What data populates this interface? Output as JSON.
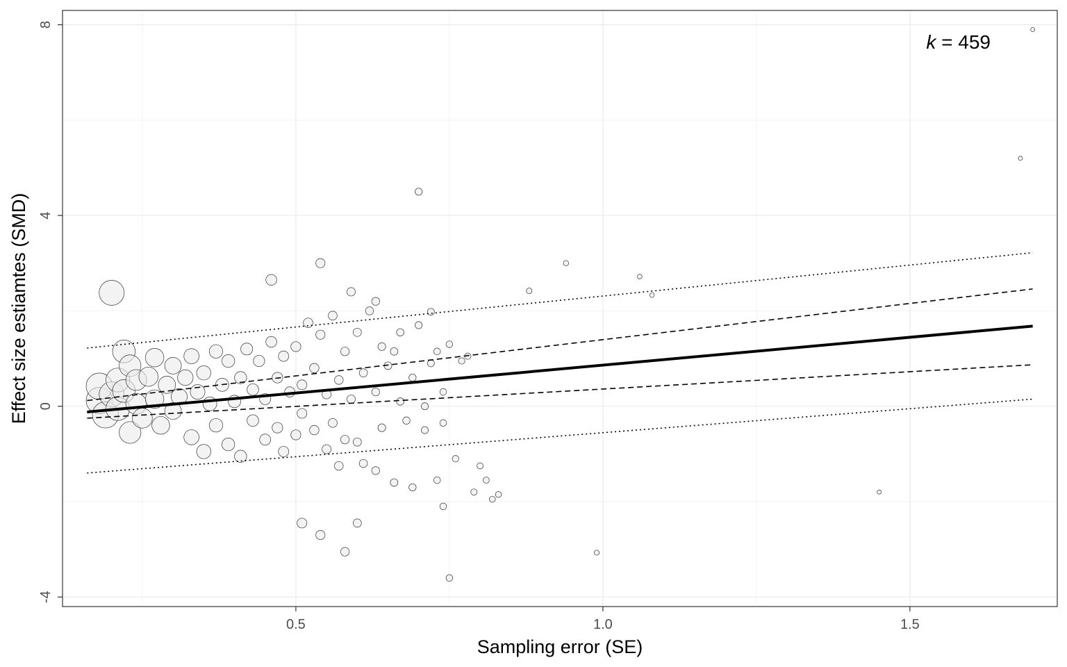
{
  "chart_data": {
    "type": "scatter",
    "xlabel": "Sampling error (SE)",
    "ylabel": "Effect size estiamtes (SMD)",
    "xlim": [
      0.12,
      1.74
    ],
    "ylim": [
      -4.2,
      8.3
    ],
    "x_ticks": [
      0.5,
      1.0,
      1.5
    ],
    "x_tick_labels": [
      "0.5",
      "1.0",
      "1.5"
    ],
    "x_minor_ticks": [
      0.25,
      0.75,
      1.25,
      1.75
    ],
    "y_ticks": [
      -4,
      0,
      4,
      8
    ],
    "y_tick_labels": [
      "-4",
      "0",
      "4",
      "8"
    ],
    "y_minor_ticks": [
      -2,
      2,
      6
    ],
    "grid": true,
    "annotation": {
      "italic": "k",
      "rest": " = 459"
    },
    "point_style": {
      "fill": "#ebebeb",
      "fill_opacity": 0.6,
      "stroke": "#333333"
    },
    "fit": {
      "x": [
        0.16,
        1.7
      ],
      "estimate": [
        -0.12,
        1.68
      ],
      "ci_lower": [
        -0.25,
        0.87
      ],
      "ci_upper": [
        0.12,
        2.46
      ],
      "pi_lower": [
        -1.4,
        0.15
      ],
      "pi_upper": [
        1.22,
        3.22
      ]
    },
    "notable_points": [
      {
        "se": 1.7,
        "smd": 7.9
      },
      {
        "se": 1.68,
        "smd": 5.2
      },
      {
        "se": 1.45,
        "smd": -1.8
      },
      {
        "se": 0.99,
        "smd": -3.07
      },
      {
        "se": 0.94,
        "smd": 3.0
      },
      {
        "se": 1.06,
        "smd": 2.72
      },
      {
        "se": 1.08,
        "smd": 2.33
      },
      {
        "se": 0.88,
        "smd": 2.42
      },
      {
        "se": 0.7,
        "smd": 4.5
      },
      {
        "se": 0.2,
        "smd": 2.38
      },
      {
        "se": 0.75,
        "smd": -3.6
      },
      {
        "se": 0.58,
        "smd": -3.05
      },
      {
        "se": 0.54,
        "smd": -2.7
      },
      {
        "se": 0.51,
        "smd": -2.45
      },
      {
        "se": 0.6,
        "smd": -2.45
      },
      {
        "se": 0.54,
        "smd": 3.0
      },
      {
        "se": 0.46,
        "smd": 2.65
      },
      {
        "se": 0.74,
        "smd": -2.1
      },
      {
        "se": 0.72,
        "smd": 1.98
      },
      {
        "se": 0.63,
        "smd": 2.2
      }
    ],
    "cloud_points": [
      [
        0.18,
        0.12
      ],
      [
        0.18,
        0.42
      ],
      [
        0.19,
        -0.18
      ],
      [
        0.2,
        0.25
      ],
      [
        0.21,
        0.55
      ],
      [
        0.21,
        -0.05
      ],
      [
        0.22,
        0.32
      ],
      [
        0.22,
        1.15
      ],
      [
        0.23,
        -0.55
      ],
      [
        0.23,
        0.85
      ],
      [
        0.24,
        0.05
      ],
      [
        0.24,
        0.55
      ],
      [
        0.25,
        -0.25
      ],
      [
        0.26,
        0.62
      ],
      [
        0.27,
        0.15
      ],
      [
        0.27,
        1.02
      ],
      [
        0.28,
        -0.4
      ],
      [
        0.29,
        0.45
      ],
      [
        0.3,
        0.85
      ],
      [
        0.3,
        -0.1
      ],
      [
        0.31,
        0.2
      ],
      [
        0.32,
        0.6
      ],
      [
        0.33,
        -0.65
      ],
      [
        0.33,
        1.05
      ],
      [
        0.34,
        0.3
      ],
      [
        0.35,
        -0.95
      ],
      [
        0.35,
        0.7
      ],
      [
        0.36,
        0.05
      ],
      [
        0.37,
        1.15
      ],
      [
        0.37,
        -0.4
      ],
      [
        0.38,
        0.45
      ],
      [
        0.39,
        -0.8
      ],
      [
        0.39,
        0.95
      ],
      [
        0.4,
        0.1
      ],
      [
        0.41,
        -1.05
      ],
      [
        0.41,
        0.6
      ],
      [
        0.42,
        1.2
      ],
      [
        0.43,
        -0.3
      ],
      [
        0.43,
        0.35
      ],
      [
        0.44,
        0.95
      ],
      [
        0.45,
        -0.7
      ],
      [
        0.45,
        0.15
      ],
      [
        0.46,
        1.35
      ],
      [
        0.47,
        -0.45
      ],
      [
        0.47,
        0.6
      ],
      [
        0.48,
        -0.95
      ],
      [
        0.48,
        1.05
      ],
      [
        0.49,
        0.3
      ],
      [
        0.5,
        -0.6
      ],
      [
        0.5,
        1.25
      ],
      [
        0.51,
        0.45
      ],
      [
        0.51,
        -0.15
      ],
      [
        0.52,
        1.75
      ],
      [
        0.53,
        -0.5
      ],
      [
        0.53,
        0.8
      ],
      [
        0.54,
        1.5
      ],
      [
        0.55,
        -0.9
      ],
      [
        0.55,
        0.25
      ],
      [
        0.56,
        1.9
      ],
      [
        0.56,
        -0.35
      ],
      [
        0.57,
        0.55
      ],
      [
        0.57,
        -1.25
      ],
      [
        0.58,
        1.15
      ],
      [
        0.58,
        -0.7
      ],
      [
        0.59,
        2.4
      ],
      [
        0.59,
        0.15
      ],
      [
        0.6,
        -0.75
      ],
      [
        0.6,
        1.55
      ],
      [
        0.61,
        0.7
      ],
      [
        0.61,
        -1.2
      ],
      [
        0.62,
        2.0
      ],
      [
        0.63,
        0.3
      ],
      [
        0.63,
        -1.35
      ],
      [
        0.64,
        1.25
      ],
      [
        0.64,
        -0.45
      ],
      [
        0.65,
        0.85
      ],
      [
        0.66,
        -1.6
      ],
      [
        0.67,
        0.1
      ],
      [
        0.67,
        1.55
      ],
      [
        0.68,
        -0.3
      ],
      [
        0.69,
        0.6
      ],
      [
        0.69,
        -1.7
      ],
      [
        0.7,
        1.7
      ],
      [
        0.71,
        -0.5
      ],
      [
        0.71,
        0.0
      ],
      [
        0.72,
        0.9
      ],
      [
        0.73,
        -1.55
      ],
      [
        0.73,
        1.15
      ],
      [
        0.74,
        -0.35
      ],
      [
        0.74,
        0.3
      ],
      [
        0.75,
        1.3
      ],
      [
        0.76,
        -1.1
      ],
      [
        0.77,
        0.95
      ],
      [
        0.78,
        1.05
      ],
      [
        0.79,
        -1.8
      ],
      [
        0.8,
        -1.25
      ],
      [
        0.81,
        -1.55
      ],
      [
        0.82,
        -1.95
      ],
      [
        0.83,
        -1.85
      ],
      [
        0.66,
        1.15
      ]
    ]
  }
}
